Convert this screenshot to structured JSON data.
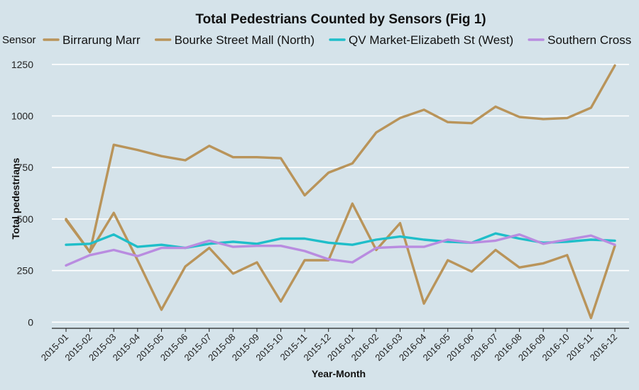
{
  "chart_data": {
    "type": "line",
    "title": "Total Pedestrians Counted by Sensors (Fig 1)",
    "xlabel": "Year-Month",
    "ylabel": "Total pedestrians",
    "legend_title": "Sensor",
    "legend_position": "top",
    "grid": true,
    "ylim": [
      -30,
      1270
    ],
    "yticks": [
      0,
      250,
      500,
      750,
      1000,
      1250
    ],
    "categories": [
      "2015-01",
      "2015-02",
      "2015-03",
      "2015-04",
      "2015-05",
      "2015-06",
      "2015-07",
      "2015-08",
      "2015-09",
      "2015-10",
      "2015-11",
      "2015-12",
      "2016-01",
      "2016-02",
      "2016-03",
      "2016-04",
      "2016-05",
      "2016-06",
      "2016-07",
      "2016-08",
      "2016-09",
      "2016-10",
      "2016-11",
      "2016-12"
    ],
    "series": [
      {
        "name": "Birrarung Marr",
        "color": "#b9945a",
        "values": [
          500,
          340,
          530,
          300,
          60,
          270,
          360,
          235,
          290,
          100,
          300,
          300,
          575,
          350,
          480,
          90,
          300,
          245,
          350,
          265,
          285,
          325,
          20,
          370
        ]
      },
      {
        "name": "Bourke Street Mall (North)",
        "color": "#b9945a",
        "values": [
          495,
          340,
          860,
          835,
          805,
          785,
          855,
          800,
          800,
          795,
          615,
          725,
          770,
          920,
          990,
          1030,
          970,
          965,
          1045,
          995,
          985,
          990,
          1040,
          1245
        ]
      },
      {
        "name": "QV Market-Elizabeth St (West)",
        "color": "#1fbec9",
        "values": [
          375,
          380,
          425,
          365,
          375,
          360,
          380,
          390,
          380,
          405,
          405,
          385,
          375,
          400,
          415,
          400,
          390,
          385,
          430,
          405,
          385,
          390,
          400,
          395
        ]
      },
      {
        "name": "Southern Cross",
        "color": "#b98ce0",
        "values": [
          275,
          325,
          350,
          320,
          360,
          360,
          395,
          365,
          370,
          370,
          345,
          305,
          290,
          360,
          365,
          365,
          400,
          385,
          395,
          425,
          380,
          400,
          420,
          375
        ]
      }
    ]
  }
}
